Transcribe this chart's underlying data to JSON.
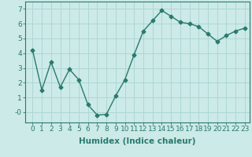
{
  "x": [
    0,
    1,
    2,
    3,
    4,
    5,
    6,
    7,
    8,
    9,
    10,
    11,
    12,
    13,
    14,
    15,
    16,
    17,
    18,
    19,
    20,
    21,
    22,
    23
  ],
  "y": [
    4.2,
    1.5,
    3.4,
    1.7,
    2.9,
    2.2,
    0.5,
    -0.2,
    -0.15,
    1.1,
    2.2,
    3.9,
    5.5,
    6.2,
    6.9,
    6.5,
    6.1,
    6.0,
    5.8,
    5.3,
    4.8,
    5.2,
    5.5,
    5.7
  ],
  "line_color": "#2a7a6e",
  "bg_color": "#cceae7",
  "grid_color": "#aad4d0",
  "xlabel": "Humidex (Indice chaleur)",
  "ylim": [
    -0.7,
    7.5
  ],
  "xlim": [
    -0.8,
    23.5
  ],
  "yticks": [
    0,
    1,
    2,
    3,
    4,
    5,
    6,
    7
  ],
  "ytick_labels": [
    "-0",
    "1",
    "2",
    "3",
    "4",
    "5",
    "6",
    "7"
  ],
  "xticks": [
    0,
    1,
    2,
    3,
    4,
    5,
    6,
    7,
    8,
    9,
    10,
    11,
    12,
    13,
    14,
    15,
    16,
    17,
    18,
    19,
    20,
    21,
    22,
    23
  ],
  "marker": "D",
  "marker_size": 2.5,
  "line_width": 1.0,
  "xlabel_fontsize": 7.5,
  "tick_fontsize": 6.5
}
